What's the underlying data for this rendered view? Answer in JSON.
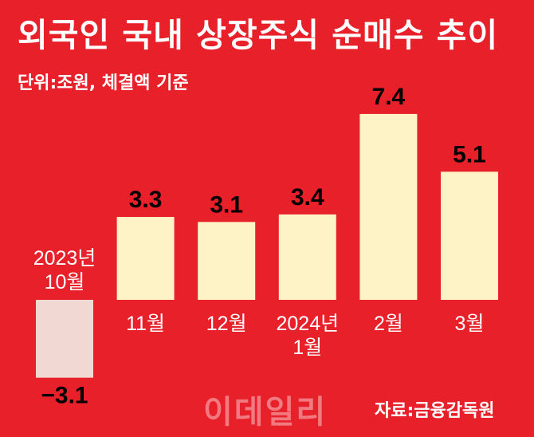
{
  "chart_data": {
    "type": "bar",
    "title": "외국인 국내 상장주식 순매수 추이",
    "subtitle": "단위:조원, 체결액 기준",
    "categories": [
      [
        "2023년",
        "10월"
      ],
      [
        "11월"
      ],
      [
        "12월"
      ],
      [
        "2024년",
        "1월"
      ],
      [
        "2월"
      ],
      [
        "3월"
      ]
    ],
    "series": [
      {
        "values": [
          -3.1,
          3.3,
          3.1,
          3.4,
          7.4,
          5.1
        ]
      }
    ],
    "value_labels": [
      "−3.1",
      "3.3",
      "3.1",
      "3.4",
      "7.4",
      "5.1"
    ],
    "ylim": [
      -3.5,
      8.0
    ],
    "grid": false,
    "colors": {
      "background": "#e8202a",
      "positive_bar": "#fdf3c6",
      "negative_bar": "#f2d8d3",
      "text": "#ffffff",
      "value_label": "#000000"
    }
  },
  "watermark": "이데일리",
  "source": "자료:금융감독원"
}
